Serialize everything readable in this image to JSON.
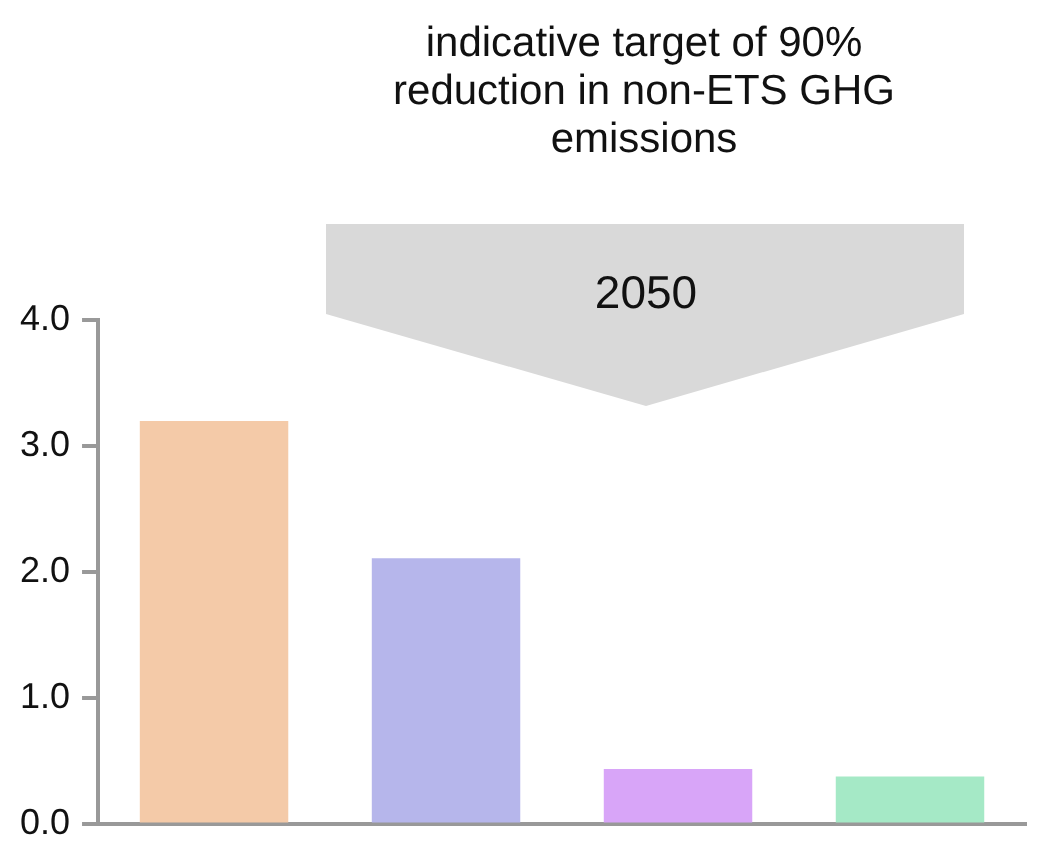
{
  "chart_data": {
    "type": "bar",
    "title": "indicative target of 90% reduction in non-ETS GHG emissions",
    "annotations": [
      "2050"
    ],
    "categories": [
      null,
      null,
      null,
      null
    ],
    "values": [
      3.2,
      2.11,
      0.44,
      0.38
    ],
    "colors": [
      "#f4caa8",
      "#b6b6eb",
      "#d8a5f8",
      "#a5e9c6"
    ],
    "ylim": [
      0,
      4
    ],
    "yticks": [
      {
        "value": 0,
        "label": "0.0"
      },
      {
        "value": 1,
        "label": "1.0"
      },
      {
        "value": 2,
        "label": "2.0"
      },
      {
        "value": 3,
        "label": "3.0"
      },
      {
        "value": 4,
        "label": "4.0"
      }
    ],
    "grid": false,
    "legend": false
  }
}
